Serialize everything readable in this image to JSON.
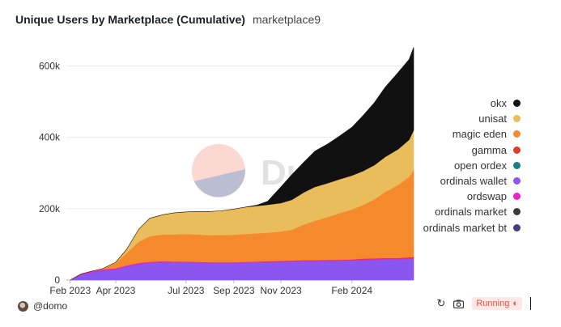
{
  "header": {
    "title": "Unique Users by Marketplace (Cumulative)",
    "subtitle": "marketplace9"
  },
  "footer": {
    "author": "@domo",
    "status": "Running"
  },
  "watermark": {
    "text": "Dune"
  },
  "legend": [
    {
      "label": "okx",
      "color": "#111111"
    },
    {
      "label": "unisat",
      "color": "#e9bd5c"
    },
    {
      "label": "magic eden",
      "color": "#f58a2c"
    },
    {
      "label": "gamma",
      "color": "#e03a2a"
    },
    {
      "label": "open ordex",
      "color": "#1a7f86"
    },
    {
      "label": "ordinals wallet",
      "color": "#8b55f0"
    },
    {
      "label": "ordswap",
      "color": "#e820c8"
    },
    {
      "label": "ordinals market",
      "color": "#3b3b3b"
    },
    {
      "label": "ordinals market bt",
      "color": "#42407a"
    }
  ],
  "chart_data": {
    "type": "area",
    "stacked": true,
    "x_start": "2023-01-27",
    "x_end": "2024-04-21",
    "x_ticks": [
      "Feb 2023",
      "Apr 2023",
      "Jul 2023",
      "Sep 2023",
      "Nov 2023",
      "Feb 2024"
    ],
    "y_ticks": [
      "0",
      "200k",
      "400k",
      "600k"
    ],
    "ylim": [
      0,
      660000
    ],
    "grid": true,
    "legend_position": "right",
    "x": [
      "2023-02-01",
      "2023-02-15",
      "2023-03-01",
      "2023-03-15",
      "2023-04-01",
      "2023-04-15",
      "2023-05-01",
      "2023-05-15",
      "2023-06-01",
      "2023-06-15",
      "2023-07-01",
      "2023-07-15",
      "2023-08-01",
      "2023-08-15",
      "2023-09-01",
      "2023-09-15",
      "2023-10-01",
      "2023-10-15",
      "2023-11-01",
      "2023-11-15",
      "2023-12-01",
      "2023-12-15",
      "2024-01-01",
      "2024-01-15",
      "2024-02-01",
      "2024-02-15",
      "2024-03-01",
      "2024-03-15",
      "2024-04-01",
      "2024-04-15",
      "2024-04-21"
    ],
    "series": [
      {
        "name": "ordinals wallet",
        "values": [
          0,
          15000,
          22000,
          27000,
          30000,
          38000,
          45000,
          48000,
          50000,
          50000,
          50000,
          49000,
          48000,
          48000,
          48000,
          49000,
          50000,
          50000,
          51000,
          52000,
          53000,
          53000,
          54000,
          54000,
          55000,
          56000,
          57000,
          58000,
          58000,
          59000,
          60000
        ]
      },
      {
        "name": "ordswap",
        "values": [
          0,
          2000,
          3000,
          3000,
          3000,
          3000,
          3000,
          3000,
          3000,
          2000,
          2000,
          2000,
          2000,
          2000,
          2000,
          2000,
          2000,
          2000,
          2000,
          2000,
          2000,
          2000,
          2000,
          2000,
          2000,
          2000,
          2000,
          2000,
          2000,
          2000,
          2000
        ]
      },
      {
        "name": "gamma",
        "values": [
          0,
          0,
          0,
          0,
          0,
          0,
          0,
          0,
          0,
          0,
          0,
          0,
          0,
          0,
          0,
          0,
          0,
          1000,
          1000,
          1000,
          1000,
          1000,
          1000,
          1000,
          1000,
          2000,
          2000,
          2000,
          2000,
          3000,
          3000
        ]
      },
      {
        "name": "magic eden",
        "values": [
          0,
          0,
          0,
          2000,
          15000,
          35000,
          60000,
          72000,
          75000,
          76000,
          77000,
          77000,
          76000,
          76000,
          77000,
          78000,
          79000,
          80000,
          82000,
          86000,
          100000,
          110000,
          120000,
          130000,
          140000,
          150000,
          165000,
          185000,
          205000,
          225000,
          245000
        ]
      },
      {
        "name": "unisat",
        "values": [
          0,
          0,
          0,
          0,
          2000,
          10000,
          35000,
          50000,
          55000,
          60000,
          62000,
          64000,
          66000,
          68000,
          72000,
          75000,
          77000,
          78000,
          80000,
          84000,
          90000,
          95000,
          95000,
          95000,
          95000,
          95000,
          96000,
          98000,
          100000,
          104000,
          110000
        ]
      },
      {
        "name": "okx",
        "values": [
          0,
          0,
          0,
          0,
          0,
          0,
          0,
          0,
          0,
          0,
          0,
          0,
          0,
          0,
          0,
          0,
          2000,
          10000,
          45000,
          70000,
          85000,
          100000,
          110000,
          120000,
          135000,
          155000,
          175000,
          195000,
          215000,
          225000,
          232000
        ]
      }
    ]
  }
}
